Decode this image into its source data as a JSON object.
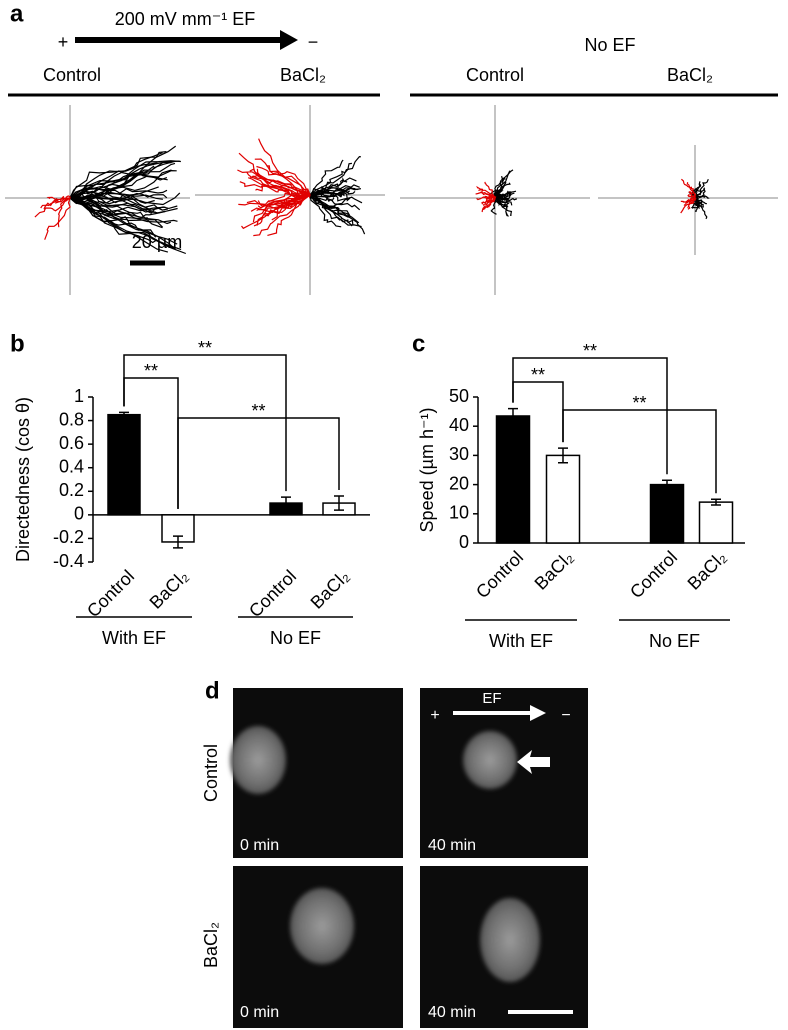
{
  "panel_a": {
    "label": "a",
    "field_label": "200 mV mm⁻¹ EF",
    "anode": "+",
    "cathode": "−",
    "no_field_label": "No EF",
    "conditions": [
      "Control",
      "BaCl₂",
      "Control",
      "BaCl₂"
    ],
    "scale_bar": "20 µm"
  },
  "chart_data": [
    {
      "panel_label": "b",
      "type": "bar",
      "y_label": "Directedness (cos θ)",
      "categories": [
        "Control",
        "BaCl₂",
        "Control",
        "BaCl₂"
      ],
      "values": [
        0.85,
        -0.23,
        0.1,
        0.1
      ],
      "errors": [
        0.02,
        0.05,
        0.05,
        0.06
      ],
      "colors": [
        "#000000",
        "#ffffff",
        "#000000",
        "#ffffff"
      ],
      "groups": [
        {
          "label": "With EF",
          "categories": [
            0,
            1
          ]
        },
        {
          "label": "No EF",
          "categories": [
            2,
            3
          ]
        }
      ],
      "significance": [
        {
          "from": 0,
          "to": 1,
          "label": "**"
        },
        {
          "from": 0,
          "to": 2,
          "label": "**"
        },
        {
          "from": 1,
          "to": 3,
          "label": "**"
        }
      ],
      "ylim": [
        -0.4,
        1
      ],
      "yticks": [
        -0.4,
        -0.2,
        0,
        0.2,
        0.4,
        0.6,
        0.8,
        1
      ]
    },
    {
      "panel_label": "c",
      "type": "bar",
      "y_label": "Speed (µm h⁻¹)",
      "categories": [
        "Control",
        "BaCl₂",
        "Control",
        "BaCl₂"
      ],
      "values": [
        43.5,
        30,
        20,
        14
      ],
      "errors": [
        2.5,
        2.5,
        1.5,
        1
      ],
      "colors": [
        "#000000",
        "#ffffff",
        "#000000",
        "#ffffff"
      ],
      "groups": [
        {
          "label": "With EF",
          "categories": [
            0,
            1
          ]
        },
        {
          "label": "No EF",
          "categories": [
            2,
            3
          ]
        }
      ],
      "significance": [
        {
          "from": 0,
          "to": 1,
          "label": "**"
        },
        {
          "from": 0,
          "to": 2,
          "label": "**"
        },
        {
          "from": 1,
          "to": 3,
          "label": "**"
        }
      ],
      "ylim": [
        0,
        50
      ],
      "yticks": [
        0,
        10,
        20,
        30,
        40,
        50
      ]
    }
  ],
  "panel_d": {
    "label": "d",
    "rows": [
      "Control",
      "BaCl₂"
    ],
    "times": [
      [
        "0 min",
        "40 min"
      ],
      [
        "0 min",
        "40 min"
      ]
    ],
    "field_label": "EF",
    "anode": "+",
    "cathode": "−"
  }
}
